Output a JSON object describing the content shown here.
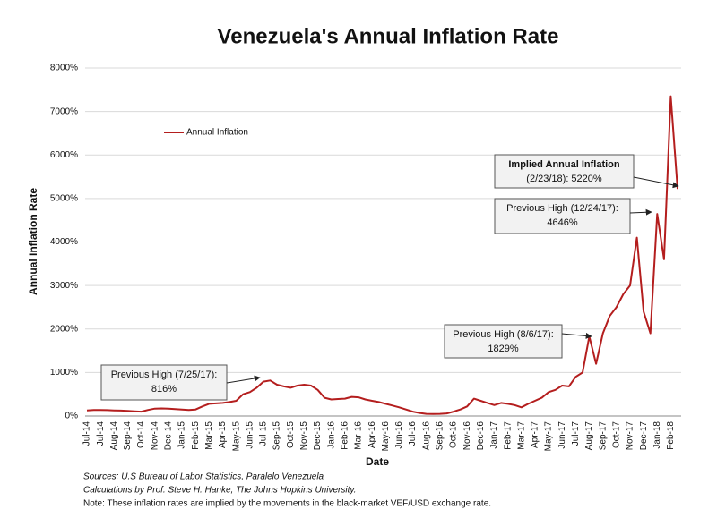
{
  "chart_data": {
    "type": "line",
    "title": "Venezuela's Annual Inflation Rate",
    "x_label": "Date",
    "y_label": "Annual Inflation Rate",
    "categories": [
      "Jul-14",
      null,
      "Jul-14",
      null,
      "Aug-14",
      null,
      "Sep-14",
      null,
      "Oct-14",
      null,
      "Nov-14",
      null,
      "Dec-14",
      null,
      "Jan-15",
      null,
      "Feb-15",
      null,
      "Mar-15",
      null,
      "Apr-15",
      null,
      "May-15",
      null,
      "Jun-15",
      null,
      "Jul-15",
      null,
      "Sep-15",
      null,
      "Oct-15",
      null,
      "Nov-15",
      null,
      "Dec-15",
      null,
      "Jan-16",
      null,
      "Feb-16",
      null,
      "Mar-16",
      null,
      "Apr-16",
      null,
      "May-16",
      null,
      "Jun-16",
      null,
      "Jul-16",
      null,
      "Aug-16",
      null,
      "Sep-16",
      null,
      "Oct-16",
      null,
      "Nov-16",
      null,
      "Dec-16",
      null,
      "Jan-17",
      null,
      "Feb-17",
      null,
      "Mar-17",
      null,
      "Apr-17",
      null,
      "May-17",
      null,
      "Jun-17",
      null,
      "Jul-17",
      null,
      "Aug-17",
      null,
      "Sep-17",
      null,
      "Oct-17",
      null,
      "Nov-17",
      null,
      "Dec-17",
      null,
      "Jan-18",
      null,
      "Feb-18",
      null
    ],
    "series": [
      {
        "name": "Annual Inflation",
        "color": "#b41e1e",
        "values": [
          130,
          140,
          140,
          135,
          130,
          125,
          120,
          110,
          100,
          140,
          170,
          175,
          170,
          160,
          150,
          140,
          150,
          220,
          280,
          290,
          300,
          320,
          350,
          500,
          550,
          650,
          790,
          816,
          720,
          680,
          650,
          700,
          720,
          700,
          600,
          420,
          380,
          390,
          400,
          440,
          430,
          380,
          350,
          320,
          280,
          240,
          200,
          150,
          100,
          70,
          50,
          45,
          50,
          60,
          100,
          150,
          220,
          400,
          350,
          300,
          250,
          300,
          280,
          250,
          200,
          280,
          350,
          420,
          550,
          600,
          700,
          680,
          900,
          1000,
          1829,
          1200,
          1900,
          2300,
          2500,
          2800,
          3000,
          4100,
          2400,
          1900,
          4646,
          3600,
          7350,
          5220
        ]
      }
    ],
    "ylim": [
      0,
      8000
    ],
    "yticks": [
      {
        "value": 0,
        "label": "0%"
      },
      {
        "value": 1000,
        "label": "1000%"
      },
      {
        "value": 2000,
        "label": "2000%"
      },
      {
        "value": 3000,
        "label": "3000%"
      },
      {
        "value": 4000,
        "label": "4000%"
      },
      {
        "value": 5000,
        "label": "5000%"
      },
      {
        "value": 6000,
        "label": "6000%"
      },
      {
        "value": 7000,
        "label": "7000%"
      },
      {
        "value": 8000,
        "label": "8000%"
      }
    ],
    "grid": true,
    "legend": "upper left",
    "annotations": [
      {
        "lines": [
          "Previous High (7/25/17):",
          "816%"
        ]
      },
      {
        "lines": [
          "Previous High (8/6/17):",
          "1829%"
        ]
      },
      {
        "lines": [
          "Previous High (12/24/17):",
          "4646%"
        ]
      },
      {
        "lines": [
          "Implied Annual Inflation",
          "(2/23/18): 5220%"
        ]
      }
    ],
    "notes": [
      "Sources: U.S Bureau of Labor Statistics, Paralelo Venezuela",
      "Calculations by Prof. Steve H. Hanke, The Johns Hopkins University.",
      "Note: These inflation rates are implied by the movements in the black-market VEF/USD exchange rate."
    ]
  }
}
